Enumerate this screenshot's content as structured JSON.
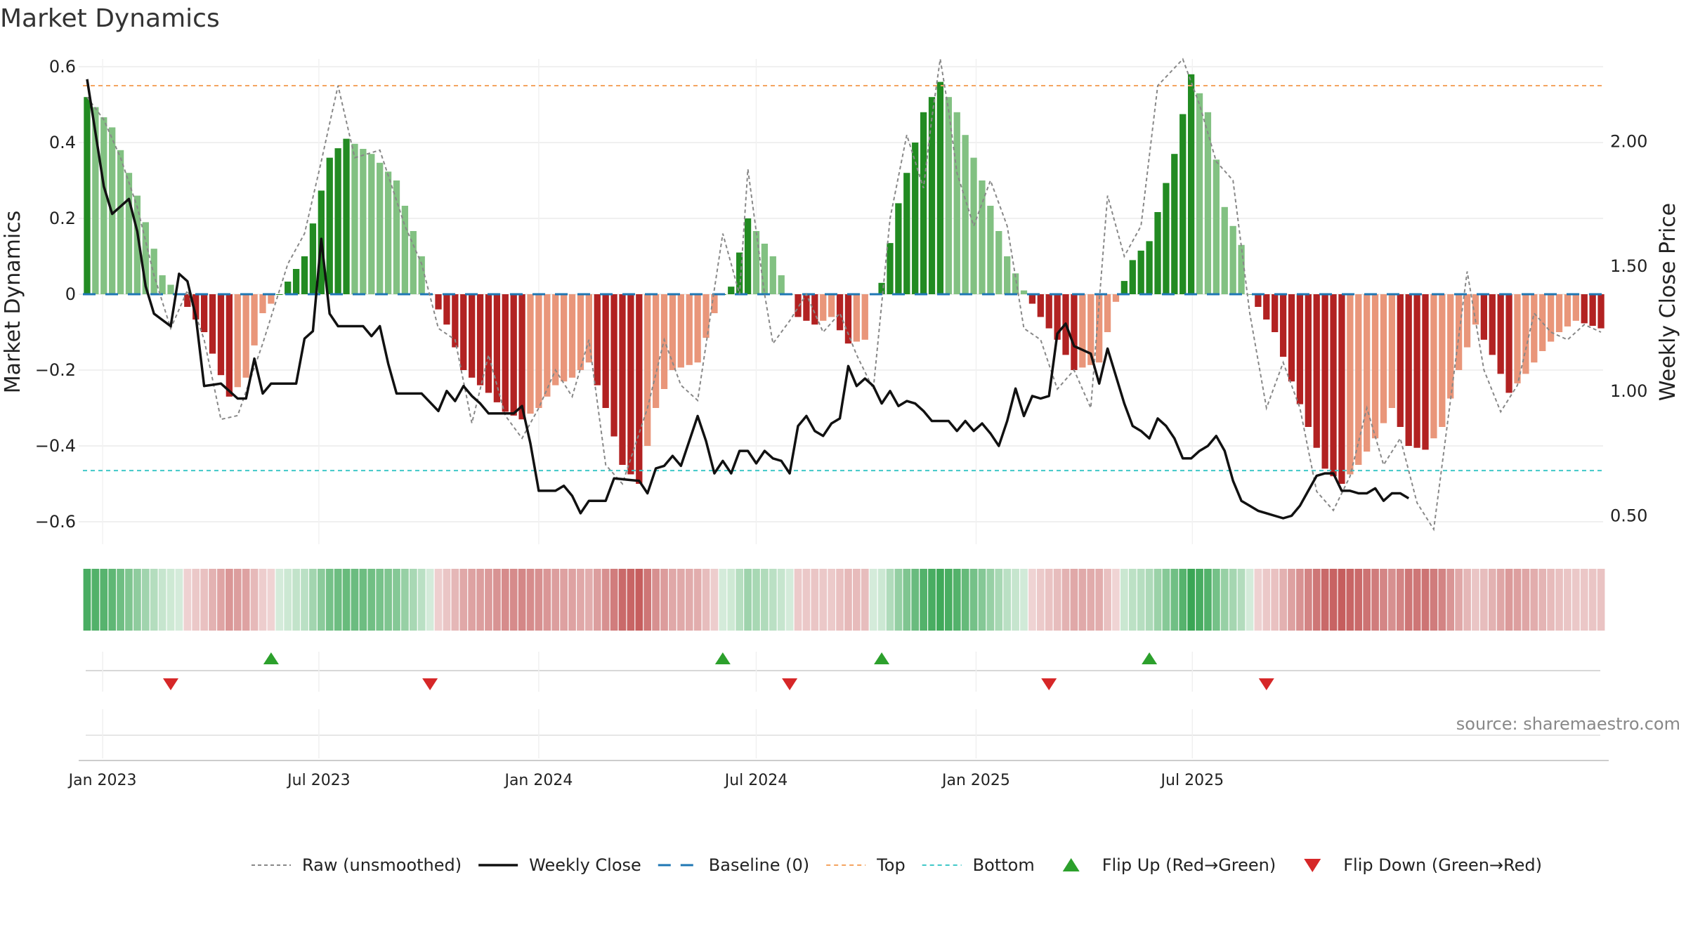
{
  "chart_data": {
    "type": "bar",
    "title": "Market Dynamics",
    "ylabel_left": "Market Dynamics",
    "ylabel_right": "Weekly Close Price",
    "ylim_left": [
      -0.65,
      0.6
    ],
    "ylim_right": [
      0.4,
      2.3
    ],
    "yticks_left": [
      {
        "value": 0.6,
        "label": "0.6"
      },
      {
        "value": 0.4,
        "label": "0.4"
      },
      {
        "value": 0.2,
        "label": "0.2"
      },
      {
        "value": 0,
        "label": "0"
      },
      {
        "value": -0.2,
        "label": "−0.2"
      },
      {
        "value": -0.4,
        "label": "−0.4"
      },
      {
        "value": -0.6,
        "label": "−0.6"
      }
    ],
    "yticks_right": [
      {
        "value": 2.0,
        "label": "2.00"
      },
      {
        "value": 1.5,
        "label": "1.50"
      },
      {
        "value": 1.0,
        "label": "1.00"
      },
      {
        "value": 0.5,
        "label": "0.50"
      }
    ],
    "x_start": "2022-12-19",
    "week_count": 182,
    "xticks": [
      {
        "date": "2023-01-01",
        "label": "Jan 2023"
      },
      {
        "date": "2023-07-01",
        "label": "Jul 2023"
      },
      {
        "date": "2024-01-01",
        "label": "Jan 2024"
      },
      {
        "date": "2024-07-01",
        "label": "Jul 2024"
      },
      {
        "date": "2025-01-01",
        "label": "Jan 2025"
      },
      {
        "date": "2025-07-01",
        "label": "Jul 2025"
      }
    ],
    "top_line": 0.55,
    "bottom_line": -0.465,
    "baseline": 0,
    "bar_anchors": [
      [
        0,
        0.52
      ],
      [
        3,
        0.44
      ],
      [
        6,
        0.26
      ],
      [
        9,
        0.05
      ],
      [
        11,
        0.0
      ],
      [
        14,
        -0.1
      ],
      [
        17,
        -0.27
      ],
      [
        19,
        -0.22
      ],
      [
        21,
        -0.05
      ],
      [
        23,
        0.0
      ],
      [
        26,
        0.1
      ],
      [
        29,
        0.36
      ],
      [
        31,
        0.41
      ],
      [
        34,
        0.37
      ],
      [
        37,
        0.3
      ],
      [
        40,
        0.1
      ],
      [
        41,
        0.0
      ],
      [
        43,
        -0.08
      ],
      [
        45,
        -0.2
      ],
      [
        48,
        -0.26
      ],
      [
        50,
        -0.31
      ],
      [
        52,
        -0.33
      ],
      [
        54,
        -0.3
      ],
      [
        56,
        -0.24
      ],
      [
        58,
        -0.22
      ],
      [
        60,
        -0.18
      ],
      [
        62,
        -0.3
      ],
      [
        64,
        -0.45
      ],
      [
        66,
        -0.5
      ],
      [
        68,
        -0.3
      ],
      [
        70,
        -0.2
      ],
      [
        73,
        -0.18
      ],
      [
        75,
        -0.05
      ],
      [
        76,
        0.0
      ],
      [
        77,
        0.02
      ],
      [
        79,
        0.2
      ],
      [
        82,
        0.1
      ],
      [
        84,
        0.0
      ],
      [
        85,
        -0.06
      ],
      [
        87,
        -0.08
      ],
      [
        89,
        -0.06
      ],
      [
        91,
        -0.13
      ],
      [
        93,
        -0.12
      ],
      [
        94,
        0.0
      ],
      [
        95,
        0.03
      ],
      [
        97,
        0.24
      ],
      [
        100,
        0.48
      ],
      [
        102,
        0.56
      ],
      [
        104,
        0.48
      ],
      [
        107,
        0.3
      ],
      [
        110,
        0.1
      ],
      [
        112,
        0.01
      ],
      [
        114,
        -0.06
      ],
      [
        116,
        -0.12
      ],
      [
        118,
        -0.2
      ],
      [
        121,
        -0.18
      ],
      [
        123,
        -0.02
      ],
      [
        125,
        0.09
      ],
      [
        127,
        0.14
      ],
      [
        130,
        0.37
      ],
      [
        132,
        0.58
      ],
      [
        134,
        0.48
      ],
      [
        136,
        0.23
      ],
      [
        138,
        0.13
      ],
      [
        139,
        0.0
      ],
      [
        142,
        -0.1
      ],
      [
        144,
        -0.23
      ],
      [
        146,
        -0.35
      ],
      [
        148,
        -0.46
      ],
      [
        150,
        -0.5
      ],
      [
        152,
        -0.45
      ],
      [
        154,
        -0.38
      ],
      [
        156,
        -0.3
      ],
      [
        158,
        -0.4
      ],
      [
        160,
        -0.41
      ],
      [
        162,
        -0.35
      ],
      [
        164,
        -0.2
      ],
      [
        166,
        -0.08
      ],
      [
        168,
        -0.16
      ],
      [
        170,
        -0.26
      ],
      [
        172,
        -0.21
      ],
      [
        174,
        -0.15
      ],
      [
        176,
        -0.1
      ],
      [
        178,
        -0.07
      ],
      [
        181,
        -0.09
      ]
    ],
    "raw_anchors": [
      [
        0,
        0.52
      ],
      [
        2,
        0.46
      ],
      [
        4,
        0.36
      ],
      [
        6,
        0.23
      ],
      [
        8,
        0.05
      ],
      [
        10,
        -0.09
      ],
      [
        12,
        0.01
      ],
      [
        14,
        -0.12
      ],
      [
        16,
        -0.33
      ],
      [
        18,
        -0.32
      ],
      [
        21,
        -0.13
      ],
      [
        24,
        0.08
      ],
      [
        26,
        0.16
      ],
      [
        28,
        0.35
      ],
      [
        30,
        0.55
      ],
      [
        32,
        0.36
      ],
      [
        35,
        0.38
      ],
      [
        38,
        0.18
      ],
      [
        40,
        0.08
      ],
      [
        42,
        -0.09
      ],
      [
        44,
        -0.12
      ],
      [
        46,
        -0.34
      ],
      [
        48,
        -0.16
      ],
      [
        50,
        -0.32
      ],
      [
        52,
        -0.38
      ],
      [
        54,
        -0.3
      ],
      [
        56,
        -0.2
      ],
      [
        58,
        -0.27
      ],
      [
        60,
        -0.12
      ],
      [
        62,
        -0.45
      ],
      [
        64,
        -0.5
      ],
      [
        67,
        -0.3
      ],
      [
        69,
        -0.12
      ],
      [
        71,
        -0.24
      ],
      [
        73,
        -0.28
      ],
      [
        76,
        0.16
      ],
      [
        78,
        0.0
      ],
      [
        79,
        0.33
      ],
      [
        81,
        0.0
      ],
      [
        82,
        -0.13
      ],
      [
        84,
        -0.07
      ],
      [
        86,
        0.0
      ],
      [
        88,
        -0.1
      ],
      [
        90,
        -0.05
      ],
      [
        92,
        -0.16
      ],
      [
        94,
        -0.25
      ],
      [
        96,
        0.2
      ],
      [
        98,
        0.42
      ],
      [
        100,
        0.28
      ],
      [
        102,
        0.65
      ],
      [
        104,
        0.32
      ],
      [
        106,
        0.18
      ],
      [
        108,
        0.3
      ],
      [
        110,
        0.18
      ],
      [
        112,
        -0.09
      ],
      [
        114,
        -0.12
      ],
      [
        116,
        -0.25
      ],
      [
        118,
        -0.2
      ],
      [
        120,
        -0.3
      ],
      [
        122,
        0.26
      ],
      [
        124,
        0.1
      ],
      [
        126,
        0.18
      ],
      [
        128,
        0.55
      ],
      [
        131,
        0.62
      ],
      [
        133,
        0.5
      ],
      [
        135,
        0.35
      ],
      [
        137,
        0.3
      ],
      [
        139,
        -0.05
      ],
      [
        141,
        -0.3
      ],
      [
        143,
        -0.18
      ],
      [
        145,
        -0.3
      ],
      [
        147,
        -0.52
      ],
      [
        149,
        -0.57
      ],
      [
        151,
        -0.48
      ],
      [
        153,
        -0.3
      ],
      [
        155,
        -0.45
      ],
      [
        157,
        -0.38
      ],
      [
        159,
        -0.55
      ],
      [
        161,
        -0.62
      ],
      [
        163,
        -0.28
      ],
      [
        165,
        0.06
      ],
      [
        167,
        -0.2
      ],
      [
        169,
        -0.31
      ],
      [
        171,
        -0.24
      ],
      [
        173,
        -0.05
      ],
      [
        175,
        -0.1
      ],
      [
        177,
        -0.12
      ],
      [
        179,
        -0.08
      ],
      [
        181,
        -0.1
      ]
    ],
    "close_anchors": [
      [
        0,
        2.25
      ],
      [
        2,
        1.82
      ],
      [
        3,
        1.71
      ],
      [
        5,
        1.77
      ],
      [
        6,
        1.64
      ],
      [
        7,
        1.42
      ],
      [
        8,
        1.31
      ],
      [
        10,
        1.26
      ],
      [
        11,
        1.47
      ],
      [
        12,
        1.44
      ],
      [
        13,
        1.3
      ],
      [
        14,
        1.02
      ],
      [
        16,
        1.03
      ],
      [
        18,
        0.97
      ],
      [
        19,
        0.97
      ],
      [
        20,
        1.13
      ],
      [
        21,
        0.99
      ],
      [
        22,
        1.03
      ],
      [
        25,
        1.03
      ],
      [
        26,
        1.21
      ],
      [
        27,
        1.24
      ],
      [
        28,
        1.61
      ],
      [
        29,
        1.31
      ],
      [
        30,
        1.26
      ],
      [
        33,
        1.26
      ],
      [
        34,
        1.22
      ],
      [
        35,
        1.26
      ],
      [
        36,
        1.11
      ],
      [
        37,
        0.99
      ],
      [
        40,
        0.99
      ],
      [
        42,
        0.92
      ],
      [
        43,
        1.0
      ],
      [
        44,
        0.96
      ],
      [
        45,
        1.02
      ],
      [
        46,
        0.98
      ],
      [
        47,
        0.95
      ],
      [
        48,
        0.91
      ],
      [
        51,
        0.91
      ],
      [
        52,
        0.94
      ],
      [
        53,
        0.79
      ],
      [
        54,
        0.6
      ],
      [
        56,
        0.6
      ],
      [
        57,
        0.62
      ],
      [
        58,
        0.58
      ],
      [
        59,
        0.51
      ],
      [
        60,
        0.56
      ],
      [
        62,
        0.56
      ],
      [
        63,
        0.65
      ],
      [
        66,
        0.64
      ],
      [
        67,
        0.59
      ],
      [
        68,
        0.69
      ],
      [
        69,
        0.7
      ],
      [
        70,
        0.74
      ],
      [
        71,
        0.7
      ],
      [
        73,
        0.9
      ],
      [
        74,
        0.8
      ],
      [
        75,
        0.67
      ],
      [
        76,
        0.72
      ],
      [
        77,
        0.67
      ],
      [
        78,
        0.76
      ],
      [
        79,
        0.76
      ],
      [
        80,
        0.71
      ],
      [
        81,
        0.76
      ],
      [
        82,
        0.73
      ],
      [
        83,
        0.72
      ],
      [
        84,
        0.67
      ],
      [
        85,
        0.86
      ],
      [
        86,
        0.9
      ],
      [
        87,
        0.84
      ],
      [
        88,
        0.82
      ],
      [
        89,
        0.87
      ],
      [
        90,
        0.89
      ],
      [
        91,
        1.1
      ],
      [
        92,
        1.02
      ],
      [
        93,
        1.05
      ],
      [
        94,
        1.02
      ],
      [
        95,
        0.95
      ],
      [
        96,
        1.0
      ],
      [
        97,
        0.94
      ],
      [
        98,
        0.96
      ],
      [
        99,
        0.95
      ],
      [
        100,
        0.92
      ],
      [
        101,
        0.88
      ],
      [
        103,
        0.88
      ],
      [
        104,
        0.84
      ],
      [
        105,
        0.88
      ],
      [
        106,
        0.84
      ],
      [
        107,
        0.87
      ],
      [
        108,
        0.83
      ],
      [
        109,
        0.78
      ],
      [
        110,
        0.88
      ],
      [
        111,
        1.01
      ],
      [
        112,
        0.9
      ],
      [
        113,
        0.98
      ],
      [
        114,
        0.97
      ],
      [
        115,
        0.98
      ],
      [
        116,
        1.23
      ],
      [
        117,
        1.27
      ],
      [
        118,
        1.18
      ],
      [
        120,
        1.15
      ],
      [
        121,
        1.03
      ],
      [
        122,
        1.17
      ],
      [
        123,
        1.06
      ],
      [
        124,
        0.95
      ],
      [
        125,
        0.86
      ],
      [
        126,
        0.84
      ],
      [
        127,
        0.81
      ],
      [
        128,
        0.89
      ],
      [
        129,
        0.86
      ],
      [
        130,
        0.81
      ],
      [
        131,
        0.73
      ],
      [
        132,
        0.73
      ],
      [
        133,
        0.76
      ],
      [
        134,
        0.78
      ],
      [
        135,
        0.82
      ],
      [
        136,
        0.76
      ],
      [
        137,
        0.64
      ],
      [
        138,
        0.56
      ],
      [
        140,
        0.52
      ],
      [
        142,
        0.5
      ],
      [
        143,
        0.49
      ],
      [
        144,
        0.5
      ],
      [
        145,
        0.54
      ],
      [
        146,
        0.6
      ],
      [
        147,
        0.66
      ],
      [
        148,
        0.67
      ],
      [
        149,
        0.67
      ],
      [
        150,
        0.6
      ],
      [
        151,
        0.6
      ],
      [
        152,
        0.59
      ],
      [
        153,
        0.59
      ],
      [
        154,
        0.61
      ],
      [
        155,
        0.56
      ],
      [
        156,
        0.59
      ],
      [
        157,
        0.59
      ],
      [
        158,
        0.57
      ]
    ],
    "flip_up": [
      22,
      76,
      95,
      127
    ],
    "flip_down": [
      10,
      41,
      84,
      115,
      141
    ],
    "legend": [
      {
        "key": "raw",
        "label": "Raw (unsmoothed)"
      },
      {
        "key": "close",
        "label": "Weekly Close"
      },
      {
        "key": "baseline",
        "label": "Baseline (0)"
      },
      {
        "key": "top",
        "label": "Top"
      },
      {
        "key": "bottom",
        "label": "Bottom"
      },
      {
        "key": "up",
        "label": "Flip Up (Red→Green)"
      },
      {
        "key": "down",
        "label": "Flip Down (Green→Red)"
      }
    ],
    "legend_placement": "bottom-center",
    "grid": true
  },
  "source_text": "source: sharemaestro.com",
  "colors": {
    "bar_pos_strong": "#228b22",
    "bar_pos_weak": "#82c182",
    "bar_neg_strong": "#b22222",
    "bar_neg_weak": "#e9967a",
    "raw_line": "#888888",
    "close_line": "#111111",
    "baseline": "#1f77b4",
    "top": "#f4a460",
    "bottom": "#40c8c8",
    "flip_up": "#2ca02c",
    "flip_down": "#d62728"
  }
}
